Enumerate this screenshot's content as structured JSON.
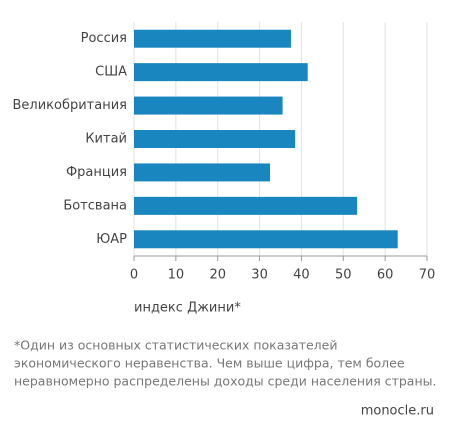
{
  "chart_data": {
    "type": "bar",
    "orientation": "horizontal",
    "categories": [
      "Россия",
      "США",
      "Великобритания",
      "Китай",
      "Франция",
      "Ботсвана",
      "ЮАР"
    ],
    "values": [
      37.5,
      41.5,
      35.5,
      38.5,
      32.5,
      53.3,
      63
    ],
    "color": "#1a86c0",
    "xlim": [
      0,
      70
    ],
    "xticks": [
      0,
      10,
      20,
      30,
      40,
      50,
      60,
      70
    ],
    "grid": true,
    "x_label": "индекс Джини*",
    "footnote": [
      "*Один из основных статистических показателей",
      "экономического неравенства. Чем выше цифра, тем более",
      "неравномерно распределены доходы среди населения страны."
    ],
    "source": "monocle.ru"
  }
}
